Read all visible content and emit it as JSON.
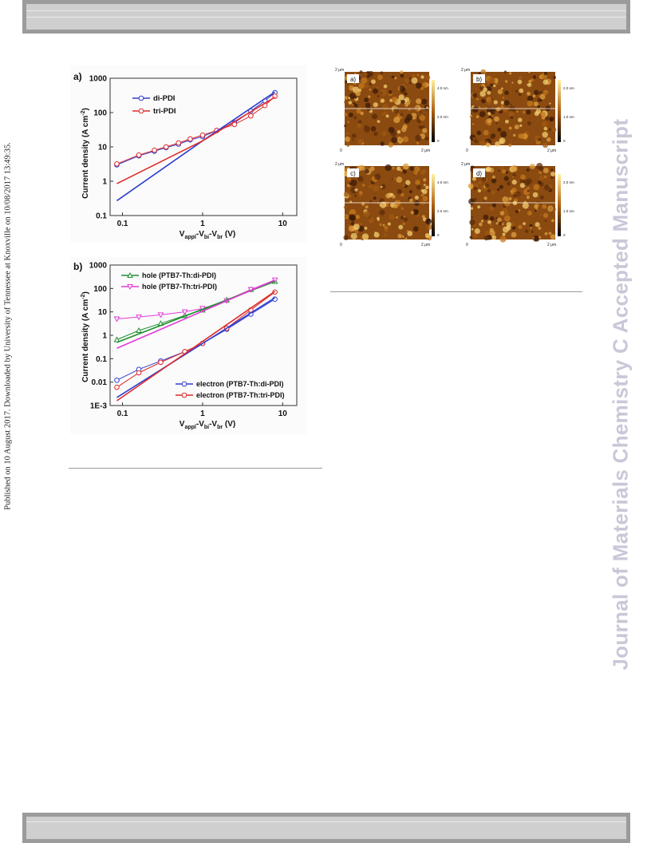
{
  "sidebar": {
    "published_note": "Published on 10 August 2017. Downloaded by University of Tennessee at Knoxville on 10/08/2017 13:49:35.",
    "watermark": "Journal of Materials Chemistry C Accepted Manuscript"
  },
  "figure_left": {
    "panel_a": {
      "label": "a)",
      "ylabel": "Current density (A cm",
      "ylabel_sup": "-2",
      "ylabel_end": ")",
      "xlabel_parts": [
        "V",
        "appl",
        "-V",
        "bi",
        "-V",
        "br",
        " (V)"
      ],
      "yticks": [
        "1000",
        "100",
        "10",
        "1",
        "0.1"
      ],
      "xticks": [
        "0.1",
        "1",
        "10"
      ],
      "legend": [
        "di-PDI",
        "tri-PDI"
      ]
    },
    "panel_b": {
      "label": "b)",
      "ylabel": "Current density (A cm",
      "ylabel_sup": "-2",
      "ylabel_end": ")",
      "xlabel_parts": [
        "V",
        "appl",
        "-V",
        "bi",
        "-V",
        "br",
        " (V)"
      ],
      "yticks": [
        "1000",
        "100",
        "10",
        "1",
        "0.1",
        "0.01",
        "1E-3"
      ],
      "xticks": [
        "0.1",
        "1",
        "10"
      ],
      "legend_top": [
        "hole (PTB7-Th:di-PDI)",
        "hole (PTB7-Th:tri-PDI)"
      ],
      "legend_bottom": [
        "electron (PTB7-Th:di-PDI)",
        "electron (PTB7-Th:tri-PDI)"
      ]
    }
  },
  "figure_right": {
    "tiles": [
      {
        "label": "a)",
        "scale_top": "2 μm",
        "scale_right": "2 μm",
        "origin": "0",
        "cbar_ticks": [
          "4.0 nm",
          "2.0 nm",
          "0"
        ]
      },
      {
        "label": "b)",
        "scale_top": "2 μm",
        "scale_right": "2 μm",
        "origin": "0",
        "cbar_ticks": [
          "2.0 nm",
          "1.0 nm",
          "0"
        ]
      },
      {
        "label": "c)",
        "scale_top": "2 μm",
        "scale_right": "2 μm",
        "origin": "0",
        "cbar_ticks": [
          "4.0 nm",
          "2.0 nm",
          "0"
        ]
      },
      {
        "label": "d)",
        "scale_top": "2 μm",
        "scale_right": "2 μm",
        "origin": "0",
        "cbar_ticks": [
          "2.0 nm",
          "1.0 nm",
          "0"
        ]
      }
    ]
  },
  "colors": {
    "di_pdi": "#2f3fd0",
    "tri_pdi": "#e02a2a",
    "hole_di": "#1f8f2f",
    "hole_tri": "#e43ad8",
    "header_band": "#cfcfcf",
    "watermark": "#c8c8d8"
  },
  "chart_data": [
    {
      "type": "line",
      "panel": "a",
      "xscale": "log",
      "yscale": "log",
      "xlim": [
        0.07,
        15
      ],
      "ylim": [
        0.1,
        1000
      ],
      "xlabel": "Vappl-Vbi-Vbr (V)",
      "ylabel": "Current density (A cm-2)",
      "series": [
        {
          "name": "di-PDI",
          "style": "markers",
          "x": [
            0.085,
            0.16,
            0.25,
            0.35,
            0.5,
            0.7,
            1.0,
            1.5,
            2.5,
            4.0,
            6.0,
            8.0
          ],
          "y": [
            3.0,
            5.5,
            7.5,
            9.5,
            12,
            16,
            20,
            30,
            50,
            110,
            220,
            380
          ]
        },
        {
          "name": "tri-PDI",
          "style": "markers",
          "x": [
            0.085,
            0.16,
            0.25,
            0.35,
            0.5,
            0.7,
            1.0,
            1.5,
            2.5,
            4.0,
            6.0,
            8.0
          ],
          "y": [
            3.2,
            5.8,
            8.0,
            10.0,
            13,
            17,
            22,
            30,
            45,
            80,
            160,
            300
          ]
        },
        {
          "name": "di-PDI fit",
          "style": "line",
          "x": [
            0.085,
            1.0,
            8.0
          ],
          "y": [
            0.27,
            15,
            400
          ]
        },
        {
          "name": "tri-PDI fit",
          "style": "line",
          "x": [
            0.085,
            1.0,
            8.0
          ],
          "y": [
            0.85,
            15,
            280
          ]
        }
      ]
    },
    {
      "type": "line",
      "panel": "b",
      "xscale": "log",
      "yscale": "log",
      "xlim": [
        0.07,
        15
      ],
      "ylim": [
        0.001,
        1000
      ],
      "xlabel": "Vappl-Vbi-Vbr (V)",
      "ylabel": "Current density (A cm-2)",
      "series": [
        {
          "name": "hole (PTB7-Th:di-PDI)",
          "style": "markers",
          "x": [
            0.085,
            0.16,
            0.3,
            0.6,
            1.0,
            2.0,
            4.0,
            8.0
          ],
          "y": [
            0.65,
            1.6,
            3.2,
            7.0,
            12,
            32,
            90,
            200
          ]
        },
        {
          "name": "hole (PTB7-Th:tri-PDI)",
          "style": "markers",
          "x": [
            0.085,
            0.16,
            0.3,
            0.6,
            1.0,
            2.0,
            4.0,
            8.0
          ],
          "y": [
            5.0,
            6.0,
            7.5,
            10,
            14,
            30,
            90,
            230
          ]
        },
        {
          "name": "electron (PTB7-Th:di-PDI)",
          "style": "markers",
          "x": [
            0.085,
            0.16,
            0.3,
            0.6,
            1.0,
            2.0,
            4.0,
            8.0
          ],
          "y": [
            0.012,
            0.035,
            0.08,
            0.2,
            0.45,
            1.8,
            8.0,
            35
          ]
        },
        {
          "name": "electron (PTB7-Th:tri-PDI)",
          "style": "markers",
          "x": [
            0.085,
            0.16,
            0.3,
            0.6,
            1.0,
            2.0,
            4.0,
            8.0
          ],
          "y": [
            0.006,
            0.025,
            0.07,
            0.2,
            0.45,
            2.0,
            12,
            70
          ]
        },
        {
          "name": "hole di fit",
          "style": "line",
          "x": [
            0.085,
            8.0
          ],
          "y": [
            0.5,
            200
          ]
        },
        {
          "name": "hole tri fit",
          "style": "line",
          "x": [
            0.085,
            8.0
          ],
          "y": [
            0.28,
            230
          ]
        },
        {
          "name": "electron di fit",
          "style": "line",
          "x": [
            0.085,
            8.0
          ],
          "y": [
            0.0022,
            40
          ]
        },
        {
          "name": "electron tri fit",
          "style": "line",
          "x": [
            0.085,
            8.0
          ],
          "y": [
            0.0016,
            75
          ]
        }
      ]
    }
  ]
}
